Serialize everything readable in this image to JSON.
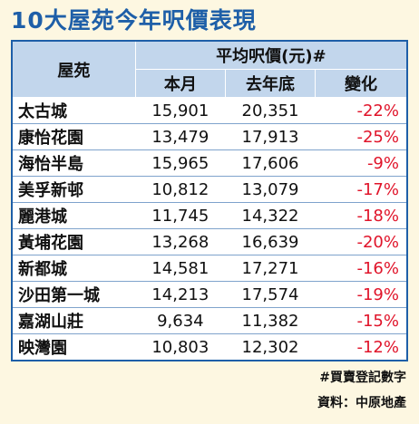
{
  "title": "10大屋苑今年呎價表現",
  "table": {
    "header_estate": "屋苑",
    "header_group": "平均呎價(元)#",
    "header_this_month": "本月",
    "header_last_year_end": "去年底",
    "header_change": "變化",
    "rows": [
      {
        "name": "太古城",
        "this_month": "15,901",
        "last_year_end": "20,351",
        "change": "-22%"
      },
      {
        "name": "康怡花園",
        "this_month": "13,479",
        "last_year_end": "17,913",
        "change": "-25%"
      },
      {
        "name": "海怡半島",
        "this_month": "15,965",
        "last_year_end": "17,606",
        "change": "-9%"
      },
      {
        "name": "美孚新邨",
        "this_month": "10,812",
        "last_year_end": "13,079",
        "change": "-17%"
      },
      {
        "name": "麗港城",
        "this_month": "11,745",
        "last_year_end": "14,322",
        "change": "-18%"
      },
      {
        "name": "黃埔花園",
        "this_month": "13,268",
        "last_year_end": "16,639",
        "change": "-20%"
      },
      {
        "name": "新都城",
        "this_month": "14,581",
        "last_year_end": "17,271",
        "change": "-16%"
      },
      {
        "name": "沙田第一城",
        "this_month": "14,213",
        "last_year_end": "17,574",
        "change": "-19%"
      },
      {
        "name": "嘉湖山莊",
        "this_month": "9,634",
        "last_year_end": "11,382",
        "change": "-15%"
      },
      {
        "name": "映灣園",
        "this_month": "10,803",
        "last_year_end": "12,302",
        "change": "-12%"
      }
    ]
  },
  "footnote": "#買賣登記數字",
  "source": "資料：中原地產",
  "colors": {
    "title": "#1e5fa8",
    "header_bg": "#c2d6ec",
    "change_text": "#e0142a",
    "background": "#fdf7e1"
  }
}
